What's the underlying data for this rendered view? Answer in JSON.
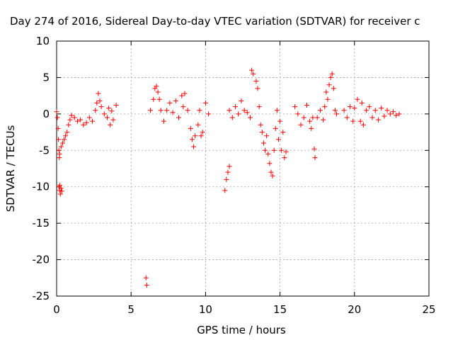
{
  "chart_data": {
    "type": "scatter",
    "title": "Day 274 of 2016, Sidereal Day-to-day VTEC variation (SDTVAR) for receiver c",
    "xlabel": "GPS time / hours",
    "ylabel": "SDTVAR / TECUs",
    "xlim": [
      0,
      25
    ],
    "ylim": [
      -25,
      10
    ],
    "xticks": [
      0,
      5,
      10,
      15,
      20,
      25
    ],
    "xtick_labels": [
      "0",
      "5",
      "10",
      "15",
      "20",
      "25"
    ],
    "yticks": [
      10,
      5,
      0,
      -5,
      -10,
      -15,
      -20,
      -25
    ],
    "ytick_labels": [
      "10",
      "5",
      "0",
      "-5",
      "-10",
      "-15",
      "-20",
      "-25"
    ],
    "grid": true,
    "marker": "+",
    "series_color": "#ff0000",
    "series": [
      {
        "name": "SDTVAR",
        "points": [
          [
            0.0,
            0.3
          ],
          [
            0.05,
            -0.5
          ],
          [
            0.1,
            -2.0
          ],
          [
            0.12,
            -3.5
          ],
          [
            0.15,
            -5.0
          ],
          [
            0.18,
            -6.0
          ],
          [
            0.2,
            -5.5
          ],
          [
            0.15,
            -10.0
          ],
          [
            0.2,
            -10.5
          ],
          [
            0.25,
            -11.0
          ],
          [
            0.3,
            -10.2
          ],
          [
            0.35,
            -10.6
          ],
          [
            0.22,
            -9.8
          ],
          [
            0.3,
            -4.5
          ],
          [
            0.4,
            -4.0
          ],
          [
            0.5,
            -3.5
          ],
          [
            0.6,
            -3.0
          ],
          [
            0.7,
            -2.5
          ],
          [
            0.8,
            -1.5
          ],
          [
            0.9,
            -0.8
          ],
          [
            1.0,
            -0.2
          ],
          [
            1.2,
            -0.5
          ],
          [
            1.4,
            -1.0
          ],
          [
            1.6,
            -0.8
          ],
          [
            1.8,
            -1.5
          ],
          [
            2.0,
            -1.2
          ],
          [
            2.2,
            -0.5
          ],
          [
            2.4,
            -1.0
          ],
          [
            2.6,
            0.5
          ],
          [
            2.7,
            1.5
          ],
          [
            2.8,
            2.8
          ],
          [
            2.9,
            1.8
          ],
          [
            3.0,
            1.0
          ],
          [
            3.2,
            0.0
          ],
          [
            3.4,
            -0.5
          ],
          [
            3.5,
            0.8
          ],
          [
            3.6,
            -1.5
          ],
          [
            3.7,
            0.4
          ],
          [
            3.8,
            -0.8
          ],
          [
            4.0,
            1.2
          ],
          [
            6.0,
            -22.5
          ],
          [
            6.05,
            -23.5
          ],
          [
            6.3,
            0.5
          ],
          [
            6.5,
            2.0
          ],
          [
            6.6,
            3.5
          ],
          [
            6.7,
            3.8
          ],
          [
            6.8,
            3.0
          ],
          [
            6.9,
            2.0
          ],
          [
            7.0,
            0.5
          ],
          [
            7.2,
            -1.0
          ],
          [
            7.4,
            0.5
          ],
          [
            7.6,
            1.5
          ],
          [
            7.8,
            0.2
          ],
          [
            8.0,
            1.8
          ],
          [
            8.2,
            -0.5
          ],
          [
            8.4,
            2.5
          ],
          [
            8.5,
            1.0
          ],
          [
            8.6,
            2.8
          ],
          [
            8.8,
            0.5
          ],
          [
            9.0,
            -2.0
          ],
          [
            9.1,
            -3.5
          ],
          [
            9.2,
            -4.5
          ],
          [
            9.3,
            -3.0
          ],
          [
            9.5,
            -1.5
          ],
          [
            9.6,
            0.5
          ],
          [
            9.7,
            -3.0
          ],
          [
            9.8,
            -2.5
          ],
          [
            10.0,
            1.5
          ],
          [
            10.2,
            0.0
          ],
          [
            11.3,
            -10.5
          ],
          [
            11.4,
            -9.0
          ],
          [
            11.5,
            -8.0
          ],
          [
            11.6,
            -7.2
          ],
          [
            11.6,
            0.5
          ],
          [
            11.8,
            -0.5
          ],
          [
            12.0,
            1.0
          ],
          [
            12.2,
            0.0
          ],
          [
            12.4,
            1.8
          ],
          [
            12.6,
            0.5
          ],
          [
            12.8,
            0.2
          ],
          [
            13.0,
            -0.5
          ],
          [
            13.1,
            6.0
          ],
          [
            13.2,
            5.5
          ],
          [
            13.4,
            4.5
          ],
          [
            13.5,
            3.5
          ],
          [
            13.6,
            1.0
          ],
          [
            13.7,
            -1.5
          ],
          [
            13.8,
            -2.5
          ],
          [
            13.9,
            -4.0
          ],
          [
            14.0,
            -5.0
          ],
          [
            14.1,
            -3.0
          ],
          [
            14.2,
            -5.5
          ],
          [
            14.3,
            -6.8
          ],
          [
            14.4,
            -8.0
          ],
          [
            14.5,
            -8.5
          ],
          [
            14.6,
            -5.0
          ],
          [
            14.7,
            -2.0
          ],
          [
            14.8,
            0.5
          ],
          [
            14.9,
            -3.5
          ],
          [
            15.0,
            -1.0
          ],
          [
            15.1,
            -5.0
          ],
          [
            15.2,
            -2.5
          ],
          [
            15.3,
            -6.0
          ],
          [
            15.4,
            -5.2
          ],
          [
            16.0,
            1.0
          ],
          [
            16.2,
            0.0
          ],
          [
            16.4,
            -1.5
          ],
          [
            16.6,
            -0.5
          ],
          [
            16.8,
            1.2
          ],
          [
            17.0,
            -1.0
          ],
          [
            17.1,
            -2.0
          ],
          [
            17.2,
            -0.5
          ],
          [
            17.3,
            -4.8
          ],
          [
            17.35,
            -6.0
          ],
          [
            17.5,
            -0.5
          ],
          [
            17.7,
            0.5
          ],
          [
            17.9,
            -0.8
          ],
          [
            18.0,
            1.0
          ],
          [
            18.1,
            3.0
          ],
          [
            18.2,
            2.0
          ],
          [
            18.3,
            4.0
          ],
          [
            18.4,
            5.0
          ],
          [
            18.5,
            5.5
          ],
          [
            18.6,
            3.5
          ],
          [
            18.7,
            0.5
          ],
          [
            18.8,
            0.0
          ],
          [
            19.3,
            0.5
          ],
          [
            19.5,
            -0.5
          ],
          [
            19.7,
            1.0
          ],
          [
            19.9,
            -1.0
          ],
          [
            20.0,
            0.8
          ],
          [
            20.2,
            2.0
          ],
          [
            20.4,
            -1.0
          ],
          [
            20.5,
            1.5
          ],
          [
            20.6,
            -1.5
          ],
          [
            20.8,
            0.5
          ],
          [
            21.0,
            1.0
          ],
          [
            21.2,
            -0.5
          ],
          [
            21.4,
            0.5
          ],
          [
            21.6,
            -0.8
          ],
          [
            21.8,
            0.8
          ],
          [
            22.0,
            -0.3
          ],
          [
            22.2,
            0.5
          ],
          [
            22.4,
            0.0
          ],
          [
            22.6,
            0.3
          ],
          [
            22.8,
            -0.2
          ],
          [
            23.0,
            0.0
          ]
        ]
      }
    ]
  }
}
